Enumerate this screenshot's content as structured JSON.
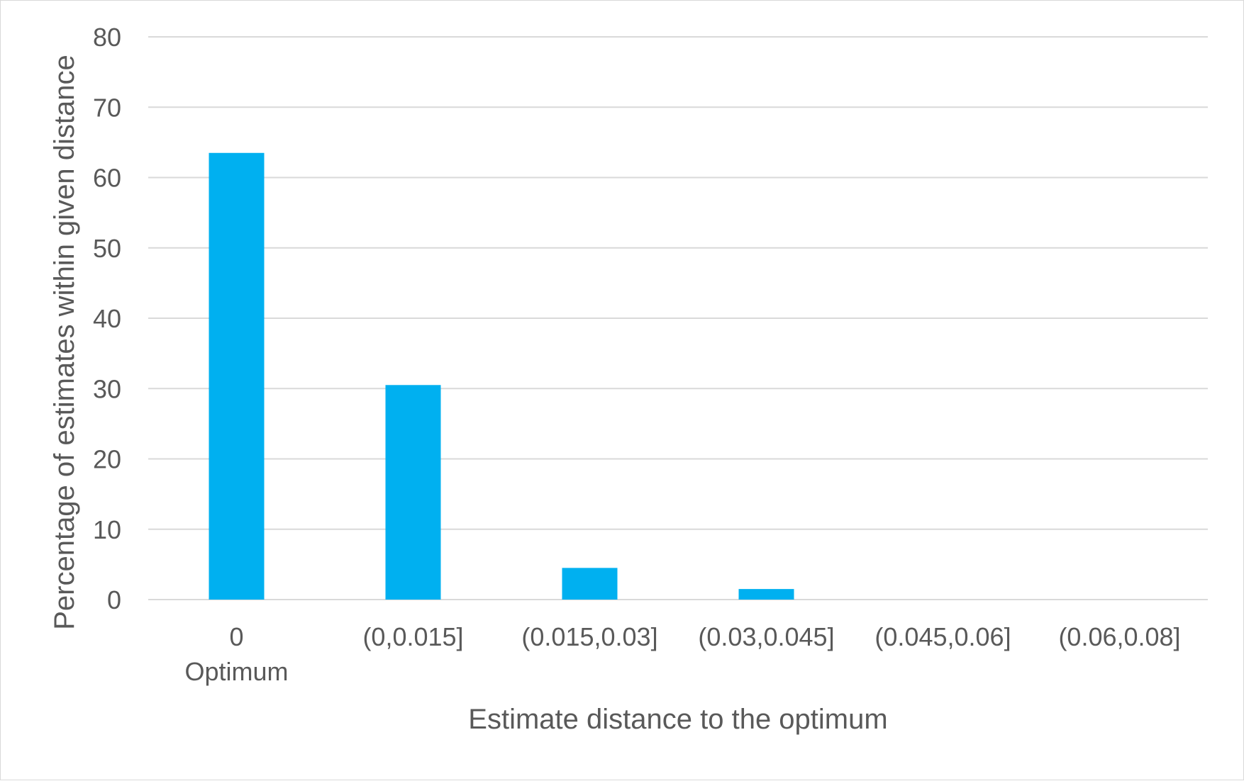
{
  "chart_data": {
    "type": "bar",
    "title": "",
    "xlabel": "Estimate distance to the optimum",
    "ylabel": "Percentage of estimates within given distance",
    "categories": [
      [
        "0",
        "Optimum"
      ],
      [
        "(0,0.015]"
      ],
      [
        "(0.015,0.03]"
      ],
      [
        "(0.03,0.045]"
      ],
      [
        "(0.045,0.06]"
      ],
      [
        "(0.06,0.08]"
      ]
    ],
    "values": [
      63.5,
      30.5,
      4.5,
      1.5,
      0,
      0
    ],
    "ylim": [
      0,
      80
    ],
    "yticks": [
      0,
      10,
      20,
      30,
      40,
      50,
      60,
      70,
      80
    ],
    "grid": true,
    "legend": "none",
    "bar_color": "#00b0f0",
    "grid_color": "#d9d9d9",
    "text_color": "#595959"
  }
}
